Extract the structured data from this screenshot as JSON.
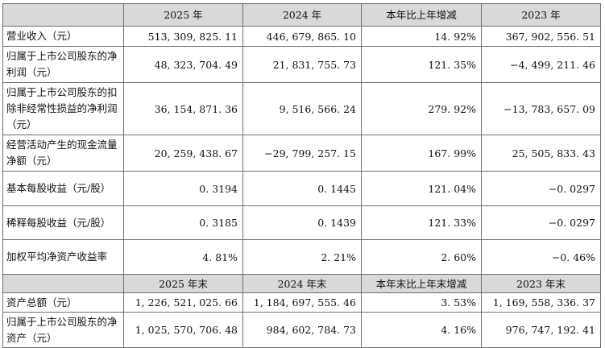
{
  "header1": [
    "",
    "2025 年",
    "2024 年",
    "本年比上年增减",
    "2023 年"
  ],
  "rows1": [
    {
      "label": "营业收入（元）",
      "v2025": "513, 309, 825. 11",
      "v2024": "446, 679, 865. 10",
      "change": "14. 92%",
      "v2023": "367, 902, 556. 51"
    },
    {
      "label": "归属于上市公司股东的净利润（元）",
      "v2025": "48, 323, 704. 49",
      "v2024": "21, 831, 755. 73",
      "change": "121. 35%",
      "v2023": "−4, 499, 211. 46"
    },
    {
      "label": "归属于上市公司股东的扣除非经常性损益的净利润（元）",
      "v2025": "36, 154, 871. 36",
      "v2024": "9, 516, 566. 24",
      "change": "279. 92%",
      "v2023": "−13, 783, 657. 09"
    },
    {
      "label": "经营活动产生的现金流量净额（元）",
      "v2025": "20, 259, 438. 67",
      "v2024": "−29, 799, 257. 15",
      "change": "167. 99%",
      "v2023": "25, 505, 833. 43"
    },
    {
      "label": "基本每股收益（元/股）",
      "v2025": "0. 3194",
      "v2024": "0. 1445",
      "change": "121. 04%",
      "v2023": "−0. 0297"
    },
    {
      "label": "稀释每股收益（元/股）",
      "v2025": "0. 3185",
      "v2024": "0. 1439",
      "change": "121. 33%",
      "v2023": "−0. 0297"
    },
    {
      "label": "加权平均净资产收益率",
      "v2025": "4. 81%",
      "v2024": "2. 21%",
      "change": "2. 60%",
      "v2023": "−0. 46%"
    }
  ],
  "header2": [
    "",
    "2025 年末",
    "2024 年末",
    "本年末比上年末增减",
    "2023 年末"
  ],
  "rows2": [
    {
      "label": "资产总额（元）",
      "v2025": "1, 226, 521, 025. 66",
      "v2024": "1, 184, 697, 555. 46",
      "change": "3. 53%",
      "v2023": "1, 169, 558, 336. 37"
    },
    {
      "label": "归属于上市公司股东的净资产（元）",
      "v2025": "1, 025, 570, 706. 48",
      "v2024": "984, 602, 784. 73",
      "change": "4. 16%",
      "v2023": "976, 747, 192. 41"
    }
  ]
}
